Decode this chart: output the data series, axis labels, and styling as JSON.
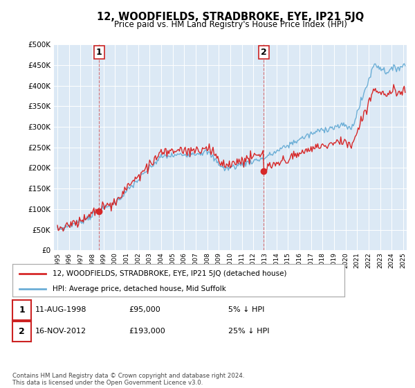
{
  "title": "12, WOODFIELDS, STRADBROKE, EYE, IP21 5JQ",
  "subtitle": "Price paid vs. HM Land Registry's House Price Index (HPI)",
  "legend_line1": "12, WOODFIELDS, STRADBROKE, EYE, IP21 5JQ (detached house)",
  "legend_line2": "HPI: Average price, detached house, Mid Suffolk",
  "sale1_label": "1",
  "sale1_date": "11-AUG-1998",
  "sale1_price": 95000,
  "sale1_pct": "5% ↓ HPI",
  "sale2_label": "2",
  "sale2_date": "16-NOV-2012",
  "sale2_price": 193000,
  "sale2_pct": "25% ↓ HPI",
  "footnote": "Contains HM Land Registry data © Crown copyright and database right 2024.\nThis data is licensed under the Open Government Licence v3.0.",
  "hpi_color": "#6baed6",
  "price_color": "#d62728",
  "sale_marker_color": "#d62728",
  "plot_bg": "#dce9f5",
  "ylim": [
    0,
    500000
  ],
  "yticks": [
    0,
    50000,
    100000,
    150000,
    200000,
    250000,
    300000,
    350000,
    400000,
    450000,
    500000
  ],
  "sale1_year": 1998.6,
  "sale2_year": 2012.88,
  "xlim_left": 1994.7,
  "xlim_right": 2025.3
}
